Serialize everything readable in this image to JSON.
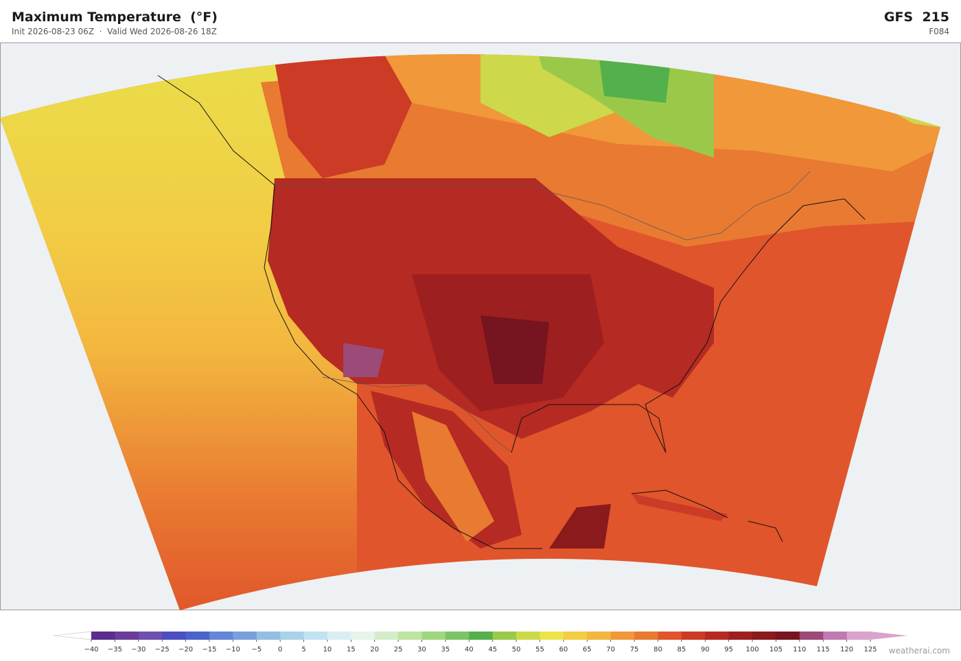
{
  "header": {
    "title": "Maximum Temperature  (°F)",
    "subtitle": "Init 2026-08-23 06Z  ·  Valid Wed 2026-08-26 18Z",
    "model": "GFS  215",
    "forecast_hour": "F084"
  },
  "colorbar": {
    "ticks": [
      {
        "value": -40,
        "label": "−40"
      },
      {
        "value": -35,
        "label": "−35"
      },
      {
        "value": -30,
        "label": "−30"
      },
      {
        "value": -25,
        "label": "−25"
      },
      {
        "value": -20,
        "label": "−20"
      },
      {
        "value": -15,
        "label": "−15"
      },
      {
        "value": -10,
        "label": "−10"
      },
      {
        "value": -5,
        "label": "−5"
      },
      0,
      5,
      10,
      15,
      20,
      25,
      30,
      35,
      40,
      45,
      50,
      55,
      60,
      65,
      70,
      75,
      80,
      85,
      90,
      95,
      100,
      105,
      110,
      115,
      120,
      125
    ],
    "colors": [
      "#5b2d8e",
      "#6a3d9a",
      "#6f4fb0",
      "#4b4fc0",
      "#4a63cc",
      "#6585d6",
      "#7aa0dc",
      "#93bfe3",
      "#a9d1ea",
      "#c2e2f0",
      "#d9eef3",
      "#e6f4ec",
      "#d4edc8",
      "#bde4a0",
      "#9fd780",
      "#7cc566",
      "#54b04c",
      "#9ac94a",
      "#cdd94a",
      "#ece44a",
      "#f2cc44",
      "#f3b63f",
      "#f0983a",
      "#e97a32",
      "#e0552b",
      "#cc3b26",
      "#b52a22",
      "#9e1f1f",
      "#8a1a1c",
      "#761420",
      "#9c4a78",
      "#c07ab0",
      "#d8a3cc"
    ]
  },
  "credit": "weatherai.com"
}
